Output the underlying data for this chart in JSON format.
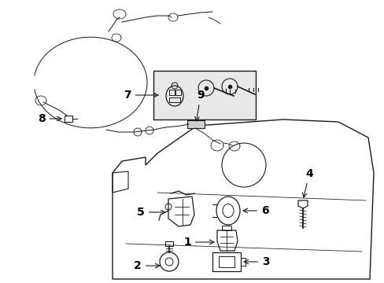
{
  "bg_color": "#ffffff",
  "line_color": "#1a1a1a",
  "label_color": "#000000",
  "font_size": 9,
  "figsize": [
    4.89,
    3.6
  ],
  "dpi": 100
}
